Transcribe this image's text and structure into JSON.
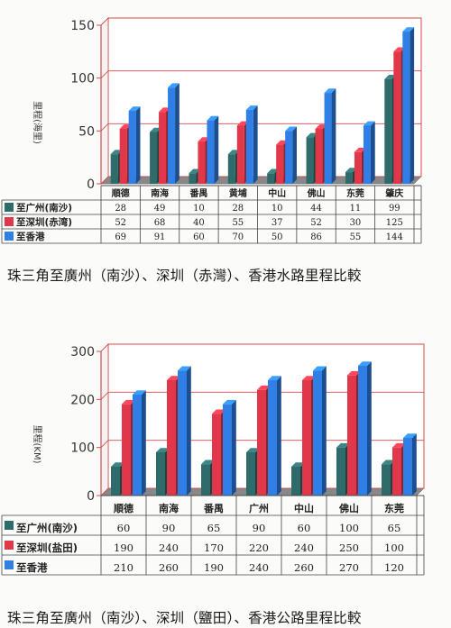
{
  "chart_data": [
    {
      "type": "bar",
      "categories": [
        "順德",
        "南海",
        "番禺",
        "黄埔",
        "中山",
        "佛山",
        "东莞",
        "肇庆"
      ],
      "series": [
        {
          "name": "至广州(南沙)",
          "values": [
            28,
            49,
            10,
            28,
            10,
            44,
            11,
            99
          ],
          "color": "#2f6b6b"
        },
        {
          "name": "至深圳(赤湾)",
          "values": [
            52,
            68,
            40,
            55,
            37,
            52,
            30,
            125
          ],
          "color": "#e0384a"
        },
        {
          "name": "至香港",
          "values": [
            69,
            91,
            60,
            70,
            50,
            86,
            55,
            144
          ],
          "color": "#2f7fe6"
        }
      ],
      "ylabel": "里程(海里)",
      "ylim": [
        0,
        150
      ],
      "yticks": [
        "0",
        "50",
        "100",
        "150"
      ],
      "grid": true,
      "legend": "table-below",
      "caption": "珠三角至廣州（南沙）、深圳（赤灣）、香港水路里程比較"
    },
    {
      "type": "bar",
      "categories": [
        "順德",
        "南海",
        "番禺",
        "广州",
        "中山",
        "佛山",
        "东莞"
      ],
      "series": [
        {
          "name": "至广州(南沙)",
          "values": [
            60,
            90,
            65,
            90,
            60,
            100,
            65
          ],
          "color": "#2f6b6b"
        },
        {
          "name": "至深圳(盐田)",
          "values": [
            190,
            240,
            170,
            220,
            240,
            250,
            100
          ],
          "color": "#e0384a"
        },
        {
          "name": "至香港",
          "values": [
            210,
            260,
            190,
            240,
            260,
            270,
            120
          ],
          "color": "#2f7fe6"
        }
      ],
      "ylabel": "里程(KM)",
      "ylim": [
        0,
        300
      ],
      "yticks": [
        "0",
        "100",
        "200",
        "300"
      ],
      "grid": true,
      "legend": "table-below",
      "caption": "珠三角至廣州（南沙）、深圳（鹽田）、香港公路里程比較"
    }
  ]
}
